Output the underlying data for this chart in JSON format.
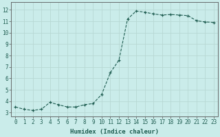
{
  "x": [
    0,
    1,
    2,
    3,
    4,
    5,
    6,
    7,
    8,
    9,
    10,
    11,
    12,
    13,
    14,
    15,
    16,
    17,
    18,
    19,
    20,
    21,
    22,
    23
  ],
  "y": [
    3.5,
    3.3,
    3.2,
    3.3,
    3.9,
    3.7,
    3.5,
    3.5,
    3.7,
    3.8,
    4.6,
    6.5,
    7.6,
    11.2,
    11.9,
    11.8,
    11.65,
    11.55,
    11.6,
    11.55,
    11.5,
    11.05,
    10.95,
    10.9
  ],
  "xlabel": "Humidex (Indice chaleur)",
  "ylim": [
    2.7,
    12.7
  ],
  "xlim": [
    -0.5,
    23.5
  ],
  "yticks": [
    3,
    4,
    5,
    6,
    7,
    8,
    9,
    10,
    11,
    12
  ],
  "xticks": [
    0,
    1,
    2,
    3,
    4,
    5,
    6,
    7,
    8,
    9,
    10,
    11,
    12,
    13,
    14,
    15,
    16,
    17,
    18,
    19,
    20,
    21,
    22,
    23
  ],
  "line_color": "#1e5c50",
  "bg_color": "#caecea",
  "grid_color": "#b8d8d4",
  "marker": "+",
  "markersize": 3,
  "tick_fontsize": 5.5,
  "xlabel_fontsize": 6.5
}
